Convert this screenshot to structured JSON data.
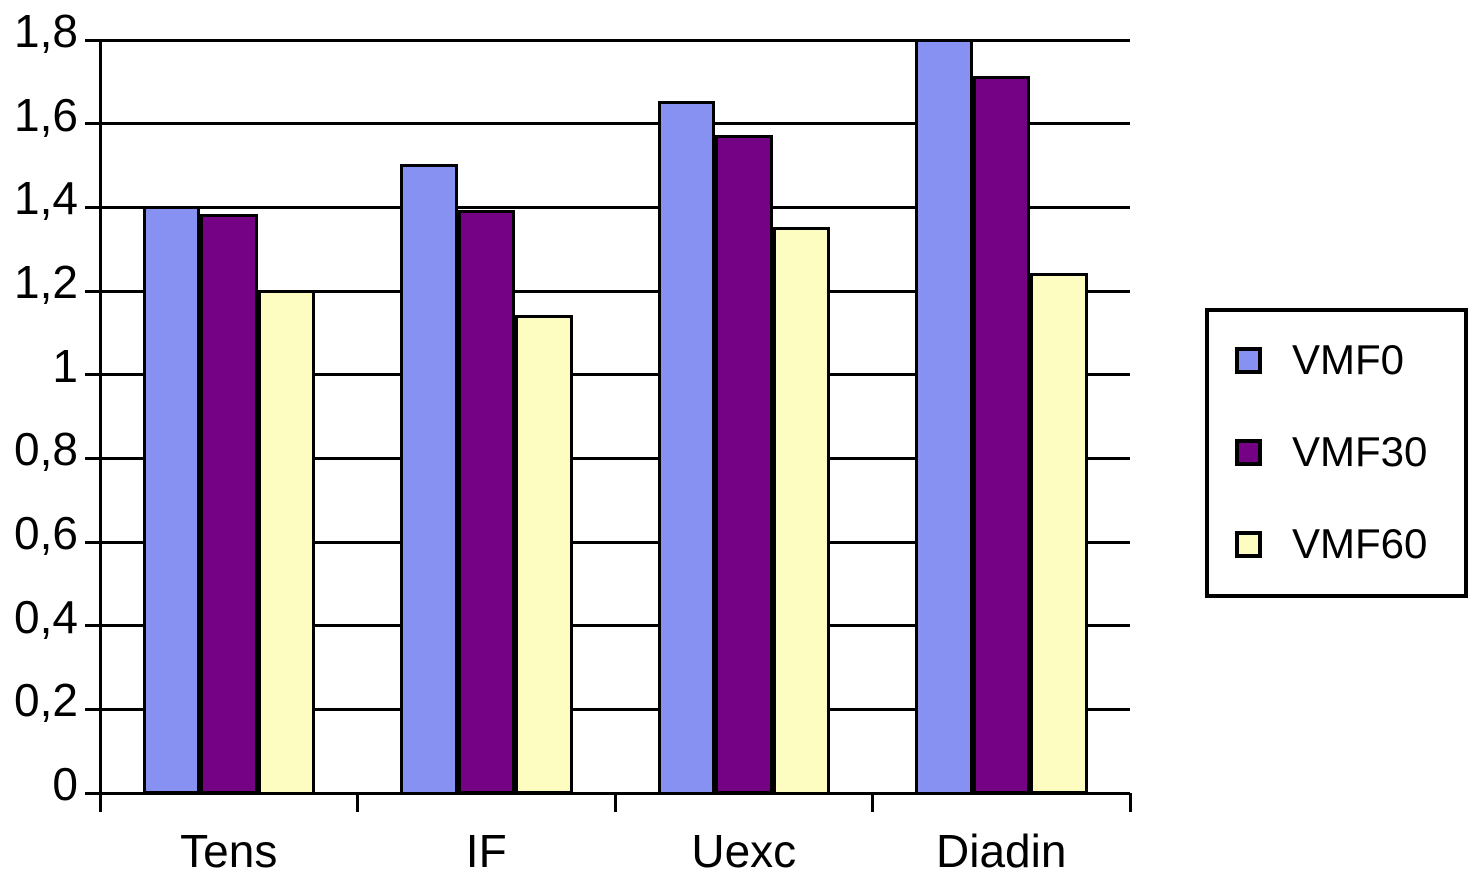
{
  "chart_data": {
    "type": "bar",
    "title": "",
    "categories": [
      "Tens",
      "IF",
      "Uexc",
      "Diadin"
    ],
    "series": [
      {
        "name": "VMF0",
        "color": "#8691F2",
        "values": [
          1.4,
          1.5,
          1.65,
          1.8
        ]
      },
      {
        "name": "VMF30",
        "color": "#750284",
        "values": [
          1.38,
          1.39,
          1.57,
          1.71
        ]
      },
      {
        "name": "VMF60",
        "color": "#FDFCC1",
        "values": [
          1.2,
          1.14,
          1.35,
          1.24
        ]
      }
    ],
    "xlabel": "",
    "ylabel": "",
    "ylim": [
      0,
      1.8
    ],
    "ytick_step": 0.2,
    "ytick_labels": [
      "0",
      "0,2",
      "0,4",
      "0,6",
      "0,8",
      "1",
      "1,2",
      "1,4",
      "1,6",
      "1,8"
    ],
    "grid": "horizontal",
    "legend_position": "right",
    "axis_color": "#000000",
    "background_color": "#FFFFFF"
  }
}
